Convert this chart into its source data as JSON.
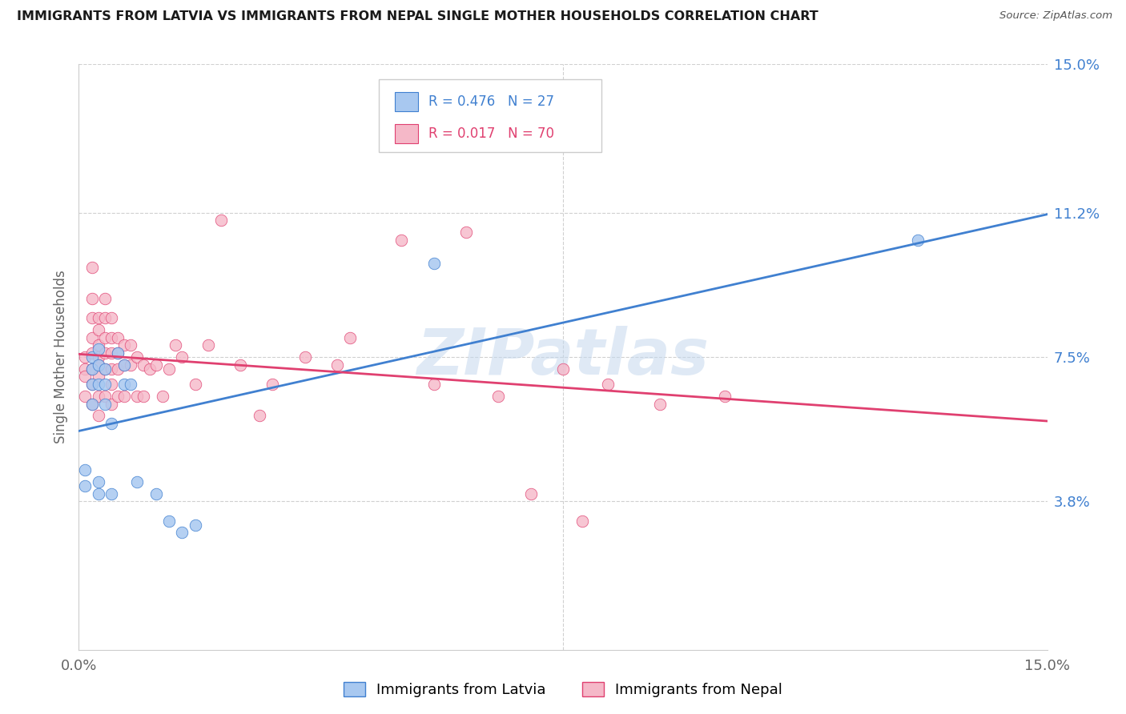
{
  "title": "IMMIGRANTS FROM LATVIA VS IMMIGRANTS FROM NEPAL SINGLE MOTHER HOUSEHOLDS CORRELATION CHART",
  "source": "Source: ZipAtlas.com",
  "ylabel": "Single Mother Households",
  "xlim": [
    0.0,
    0.15
  ],
  "ylim": [
    0.0,
    0.15
  ],
  "ytick_labels": [
    "3.8%",
    "7.5%",
    "11.2%",
    "15.0%"
  ],
  "ytick_positions": [
    0.038,
    0.075,
    0.112,
    0.15
  ],
  "legend_r_latvia": "R = 0.476",
  "legend_n_latvia": "N = 27",
  "legend_r_nepal": "R = 0.017",
  "legend_n_nepal": "N = 70",
  "legend_label_latvia": "Immigrants from Latvia",
  "legend_label_nepal": "Immigrants from Nepal",
  "watermark": "ZIPatlas",
  "color_latvia": "#a8c8f0",
  "color_nepal": "#f5b8c8",
  "line_color_latvia": "#4080d0",
  "line_color_nepal": "#e04070",
  "latvia_x": [
    0.001,
    0.001,
    0.002,
    0.002,
    0.002,
    0.002,
    0.003,
    0.003,
    0.003,
    0.003,
    0.003,
    0.004,
    0.004,
    0.004,
    0.005,
    0.005,
    0.006,
    0.007,
    0.007,
    0.008,
    0.009,
    0.012,
    0.014,
    0.016,
    0.018,
    0.13,
    0.055
  ],
  "latvia_y": [
    0.046,
    0.042,
    0.075,
    0.072,
    0.068,
    0.063,
    0.077,
    0.073,
    0.068,
    0.043,
    0.04,
    0.072,
    0.068,
    0.063,
    0.058,
    0.04,
    0.076,
    0.073,
    0.068,
    0.068,
    0.043,
    0.04,
    0.033,
    0.03,
    0.032,
    0.105,
    0.099
  ],
  "nepal_x": [
    0.001,
    0.001,
    0.001,
    0.001,
    0.002,
    0.002,
    0.002,
    0.002,
    0.002,
    0.002,
    0.002,
    0.002,
    0.003,
    0.003,
    0.003,
    0.003,
    0.003,
    0.003,
    0.003,
    0.003,
    0.004,
    0.004,
    0.004,
    0.004,
    0.004,
    0.004,
    0.005,
    0.005,
    0.005,
    0.005,
    0.005,
    0.005,
    0.006,
    0.006,
    0.006,
    0.006,
    0.007,
    0.007,
    0.007,
    0.008,
    0.008,
    0.009,
    0.009,
    0.01,
    0.01,
    0.011,
    0.012,
    0.013,
    0.014,
    0.015,
    0.016,
    0.018,
    0.02,
    0.022,
    0.025,
    0.028,
    0.03,
    0.035,
    0.04,
    0.042,
    0.05,
    0.055,
    0.06,
    0.065,
    0.07,
    0.075,
    0.078,
    0.082,
    0.09,
    0.1
  ],
  "nepal_y": [
    0.075,
    0.072,
    0.07,
    0.065,
    0.098,
    0.09,
    0.085,
    0.08,
    0.076,
    0.072,
    0.068,
    0.063,
    0.085,
    0.082,
    0.078,
    0.075,
    0.073,
    0.07,
    0.065,
    0.06,
    0.09,
    0.085,
    0.08,
    0.076,
    0.072,
    0.065,
    0.085,
    0.08,
    0.076,
    0.072,
    0.068,
    0.063,
    0.08,
    0.076,
    0.072,
    0.065,
    0.078,
    0.073,
    0.065,
    0.078,
    0.073,
    0.075,
    0.065,
    0.073,
    0.065,
    0.072,
    0.073,
    0.065,
    0.072,
    0.078,
    0.075,
    0.068,
    0.078,
    0.11,
    0.073,
    0.06,
    0.068,
    0.075,
    0.073,
    0.08,
    0.105,
    0.068,
    0.107,
    0.065,
    0.04,
    0.072,
    0.033,
    0.068,
    0.063,
    0.065
  ]
}
